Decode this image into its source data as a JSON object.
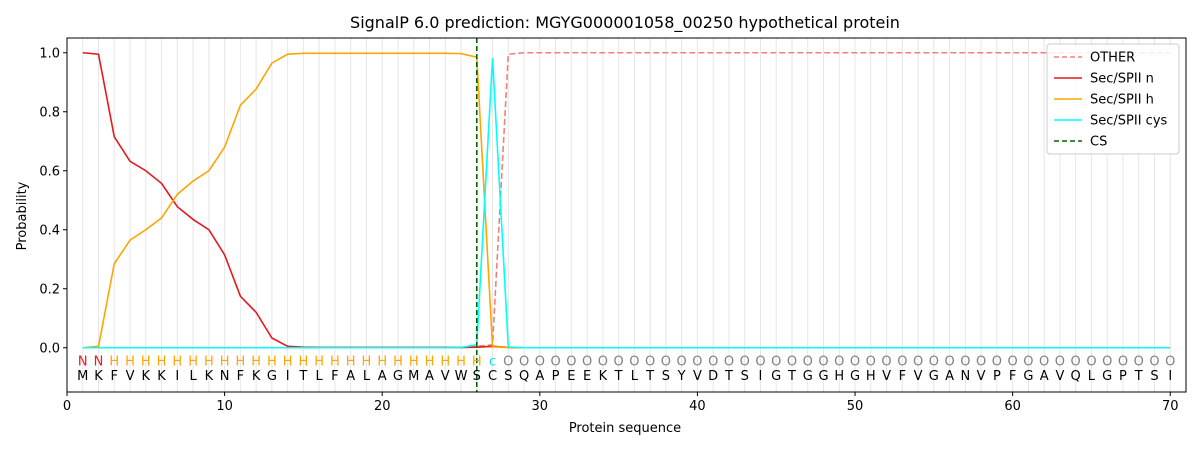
{
  "chart_data": {
    "type": "line",
    "title": "SignalP 6.0 prediction: MGYG000001058_00250 hypothetical protein",
    "xlabel": "Protein sequence",
    "ylabel": "Probability",
    "xlim": [
      0,
      71
    ],
    "ylim": [
      -0.15,
      1.05
    ],
    "x_ticks": [
      0,
      10,
      20,
      30,
      40,
      50,
      60,
      70
    ],
    "y_ticks": [
      0.0,
      0.2,
      0.4,
      0.6,
      0.8,
      1.0
    ],
    "grid": "vertical lines at each residue",
    "legend_position": "top-right",
    "x": [
      1,
      2,
      3,
      4,
      5,
      6,
      7,
      8,
      9,
      10,
      11,
      12,
      13,
      14,
      15,
      16,
      17,
      18,
      19,
      20,
      21,
      22,
      23,
      24,
      25,
      26,
      27,
      28,
      29,
      30,
      31,
      32,
      33,
      34,
      35,
      36,
      37,
      38,
      39,
      40,
      41,
      42,
      43,
      44,
      45,
      46,
      47,
      48,
      49,
      50,
      51,
      52,
      53,
      54,
      55,
      56,
      57,
      58,
      59,
      60,
      61,
      62,
      63,
      64,
      65,
      66,
      67,
      68,
      69,
      70
    ],
    "series": [
      {
        "name": "OTHER",
        "color": "#f08080",
        "style": "dashed",
        "values": [
          0,
          0,
          0,
          0,
          0,
          0,
          0,
          0,
          0,
          0,
          0,
          0,
          0,
          0,
          0,
          0,
          0,
          0,
          0,
          0,
          0,
          0,
          0,
          0,
          0,
          0.005,
          0.01,
          0.995,
          1,
          1,
          1,
          1,
          1,
          1,
          1,
          1,
          1,
          1,
          1,
          1,
          1,
          1,
          1,
          1,
          1,
          1,
          1,
          1,
          1,
          1,
          1,
          1,
          1,
          1,
          1,
          1,
          1,
          1,
          1,
          1,
          1,
          1,
          1,
          1,
          1,
          1,
          1,
          1,
          1,
          1
        ]
      },
      {
        "name": "Sec/SPII n",
        "color": "#e41a1c",
        "style": "solid",
        "values": [
          1.0,
          0.995,
          0.715,
          0.632,
          0.6,
          0.557,
          0.478,
          0.435,
          0.4,
          0.315,
          0.175,
          0.12,
          0.033,
          0.005,
          0.002,
          0.001,
          0.001,
          0.001,
          0.001,
          0.001,
          0.001,
          0.001,
          0.001,
          0.001,
          0.001,
          0.002,
          0.005,
          0.001,
          0,
          0,
          0,
          0,
          0,
          0,
          0,
          0,
          0,
          0,
          0,
          0,
          0,
          0,
          0,
          0,
          0,
          0,
          0,
          0,
          0,
          0,
          0,
          0,
          0,
          0,
          0,
          0,
          0,
          0,
          0,
          0,
          0,
          0,
          0,
          0,
          0,
          0,
          0,
          0,
          0,
          0
        ]
      },
      {
        "name": "Sec/SPII h",
        "color": "#ffa500",
        "style": "solid",
        "values": [
          0,
          0.005,
          0.285,
          0.365,
          0.4,
          0.44,
          0.52,
          0.565,
          0.6,
          0.68,
          0.822,
          0.877,
          0.965,
          0.995,
          0.998,
          0.998,
          0.998,
          0.998,
          0.998,
          0.998,
          0.998,
          0.998,
          0.998,
          0.998,
          0.997,
          0.985,
          0.003,
          0.002,
          0,
          0,
          0,
          0,
          0,
          0,
          0,
          0,
          0,
          0,
          0,
          0,
          0,
          0,
          0,
          0,
          0,
          0,
          0,
          0,
          0,
          0,
          0,
          0,
          0,
          0,
          0,
          0,
          0,
          0,
          0,
          0,
          0,
          0,
          0,
          0,
          0,
          0,
          0,
          0,
          0,
          0
        ]
      },
      {
        "name": "Sec/SPII cys",
        "color": "#00ffff",
        "style": "solid",
        "values": [
          0,
          0,
          0,
          0,
          0,
          0,
          0,
          0,
          0,
          0,
          0,
          0,
          0,
          0,
          0,
          0,
          0,
          0,
          0,
          0,
          0,
          0,
          0,
          0,
          0.001,
          0.01,
          0.982,
          0.003,
          0,
          0,
          0,
          0,
          0,
          0,
          0,
          0,
          0,
          0,
          0,
          0,
          0,
          0,
          0,
          0,
          0,
          0,
          0,
          0,
          0,
          0,
          0,
          0,
          0,
          0,
          0,
          0,
          0,
          0,
          0,
          0,
          0,
          0,
          0,
          0,
          0,
          0,
          0,
          0,
          0,
          0
        ]
      }
    ],
    "cs": {
      "name": "CS",
      "x": 26,
      "color": "#006400",
      "style": "dashed"
    },
    "sequence": [
      "M",
      "K",
      "F",
      "V",
      "K",
      "K",
      "I",
      "L",
      "K",
      "N",
      "F",
      "K",
      "G",
      "I",
      "T",
      "L",
      "F",
      "A",
      "L",
      "A",
      "G",
      "M",
      "A",
      "V",
      "W",
      "S",
      "C",
      "S",
      "Q",
      "A",
      "P",
      "E",
      "E",
      "K",
      "T",
      "L",
      "T",
      "S",
      "Y",
      "V",
      "D",
      "T",
      "S",
      "I",
      "G",
      "T",
      "G",
      "G",
      "H",
      "G",
      "H",
      "V",
      "F",
      "V",
      "G",
      "A",
      "N",
      "V",
      "P",
      "F",
      "G",
      "A",
      "V",
      "Q",
      "L",
      "G",
      "P",
      "T",
      "S",
      "I"
    ],
    "annotation": [
      "N",
      "N",
      "H",
      "H",
      "H",
      "H",
      "H",
      "H",
      "H",
      "H",
      "H",
      "H",
      "H",
      "H",
      "H",
      "H",
      "H",
      "H",
      "H",
      "H",
      "H",
      "H",
      "H",
      "H",
      "H",
      "H",
      "c",
      "O",
      "O",
      "O",
      "O",
      "O",
      "O",
      "O",
      "O",
      "O",
      "O",
      "O",
      "O",
      "O",
      "O",
      "O",
      "O",
      "O",
      "O",
      "O",
      "O",
      "O",
      "O",
      "O",
      "O",
      "O",
      "O",
      "O",
      "O",
      "O",
      "O",
      "O",
      "O",
      "O",
      "O",
      "O",
      "O",
      "O",
      "O",
      "O",
      "O",
      "O",
      "O",
      "O"
    ],
    "annotation_colors": {
      "N": "#e41a1c",
      "H": "#ffa500",
      "c": "#00e5e5",
      "O": "#808080"
    }
  }
}
